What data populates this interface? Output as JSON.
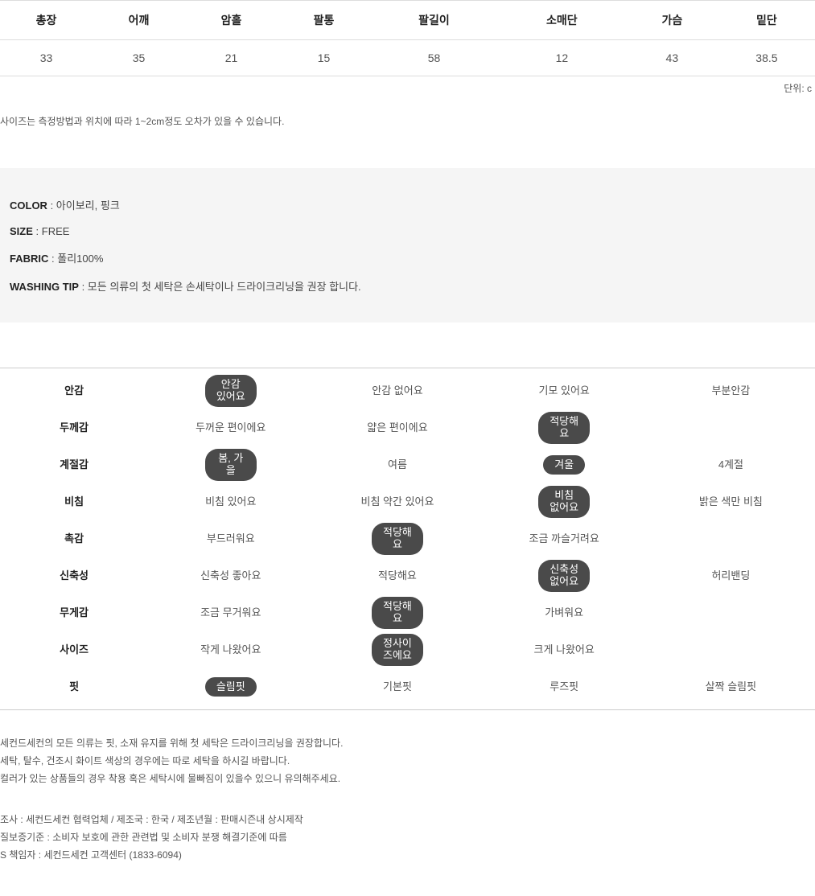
{
  "size_table": {
    "headers": [
      "총장",
      "어깨",
      "암홀",
      "팔통",
      "팔길이",
      "소매단",
      "가슴",
      "밑단"
    ],
    "values": [
      "33",
      "35",
      "21",
      "15",
      "58",
      "12",
      "43",
      "38.5"
    ]
  },
  "unit_text": "단위: c",
  "size_note": "사이즈는 측정방법과 위치에 따라 1~2cm정도 오차가 있을 수 있습니다.",
  "info": {
    "color_label": "COLOR",
    "color_value": ": 아이보리, 핑크",
    "size_label": "SIZE",
    "size_value": ": FREE",
    "fabric_label": "FABRIC",
    "fabric_value": ": 폴리100%",
    "washing_label": "WASHING TIP",
    "washing_value": ": 모든 의류의 첫 세탁은 손세탁이나 드라이크리닝을 권장 합니다."
  },
  "attrs": [
    {
      "cat": "안감",
      "opts": [
        "안감 있어요",
        "안감 없어요",
        "기모 있어요",
        "부분안감"
      ],
      "sel": [
        0
      ]
    },
    {
      "cat": "두께감",
      "opts": [
        "두꺼운 편이에요",
        "얇은 편이에요",
        "적당해요",
        ""
      ],
      "sel": [
        2
      ]
    },
    {
      "cat": "계절감",
      "opts": [
        "봄, 가을",
        "여름",
        "겨울",
        "4계절"
      ],
      "sel": [
        0,
        2
      ]
    },
    {
      "cat": "비침",
      "opts": [
        "비침 있어요",
        "비침 약간 있어요",
        "비침 없어요",
        "밝은 색만 비침"
      ],
      "sel": [
        2
      ]
    },
    {
      "cat": "촉감",
      "opts": [
        "부드러워요",
        "적당해요",
        "조금 까슬거려요",
        ""
      ],
      "sel": [
        1
      ]
    },
    {
      "cat": "신축성",
      "opts": [
        "신축성 좋아요",
        "적당해요",
        "신축성 없어요",
        "허리밴딩"
      ],
      "sel": [
        2
      ]
    },
    {
      "cat": "무게감",
      "opts": [
        "조금 무거워요",
        "적당해요",
        "가벼워요",
        ""
      ],
      "sel": [
        1
      ]
    },
    {
      "cat": "사이즈",
      "opts": [
        "작게 나왔어요",
        "정사이즈에요",
        "크게 나왔어요",
        ""
      ],
      "sel": [
        1
      ]
    },
    {
      "cat": "핏",
      "opts": [
        "슬림핏",
        "기본핏",
        "루즈핏",
        "살짝 슬림핏"
      ],
      "sel": [
        0
      ]
    }
  ],
  "footer": {
    "l1": "세컨드세컨의 모든 의류는 핏, 소재 유지를 위해 첫 세탁은 드라이크리닝을 권장합니다.",
    "l2": "세탁, 탈수, 건조시 화이트 색상의 경우에는 따로 세탁을 하시길 바랍니다.",
    "l3": "컬러가 있는 상품들의 경우 착용 혹은 세탁시에 물빠짐이 있을수 있으니 유의해주세요.",
    "l4": "조사 : 세컨드세컨 협력업체 / 제조국 : 한국 / 제조년월 : 판매시즌내 상시제작",
    "l5": "질보증기준 : 소비자 보호에 관한 관련법 및 소비자 분쟁 해결기준에 따름",
    "l6": "S 책임자 : 세컨드세컨 고객센터 (1833-6094)"
  }
}
